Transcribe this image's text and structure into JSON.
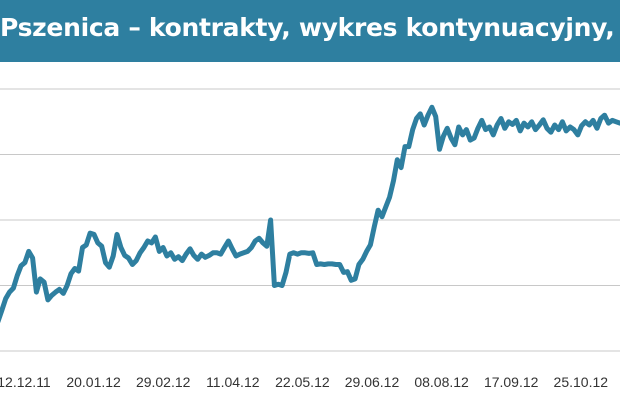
{
  "title": "Pszenica – kontrakty, wykres kontynuacyjny, Matif",
  "colors": {
    "banner": "#2e7fa0",
    "series": "#2e7fa0",
    "grid": "#c8c8c8",
    "text": "#333333"
  },
  "chart_data": {
    "type": "line",
    "title": "Pszenica – kontrakty, wykres kontynuacyjny, Matif",
    "xlabel": "",
    "ylabel": "",
    "x_tick_labels": [
      "12.12.11",
      "20.01.12",
      "29.02.12",
      "11.04.12",
      "22.05.12",
      "29.06.12",
      "08.08.12",
      "17.09.12",
      "25.10.12"
    ],
    "x_range": [
      0,
      324
    ],
    "y_range": [
      0,
      4
    ],
    "grid": true,
    "legend": "none",
    "series": [
      {
        "name": "",
        "points": [
          [
            0,
            0.45
          ],
          [
            2,
            0.62
          ],
          [
            4,
            0.8
          ],
          [
            6,
            0.9
          ],
          [
            8,
            0.96
          ],
          [
            10,
            1.15
          ],
          [
            12,
            1.3
          ],
          [
            14,
            1.35
          ],
          [
            16,
            1.52
          ],
          [
            18,
            1.42
          ],
          [
            20,
            0.9
          ],
          [
            22,
            1.1
          ],
          [
            24,
            1.05
          ],
          [
            26,
            0.78
          ],
          [
            28,
            0.85
          ],
          [
            30,
            0.9
          ],
          [
            32,
            0.94
          ],
          [
            34,
            0.88
          ],
          [
            36,
            1.0
          ],
          [
            38,
            1.18
          ],
          [
            40,
            1.26
          ],
          [
            42,
            1.22
          ],
          [
            44,
            1.58
          ],
          [
            46,
            1.62
          ],
          [
            48,
            1.8
          ],
          [
            50,
            1.78
          ],
          [
            52,
            1.65
          ],
          [
            54,
            1.6
          ],
          [
            56,
            1.35
          ],
          [
            58,
            1.28
          ],
          [
            60,
            1.45
          ],
          [
            62,
            1.78
          ],
          [
            64,
            1.58
          ],
          [
            66,
            1.46
          ],
          [
            68,
            1.42
          ],
          [
            70,
            1.32
          ],
          [
            72,
            1.38
          ],
          [
            74,
            1.5
          ],
          [
            76,
            1.58
          ],
          [
            78,
            1.68
          ],
          [
            80,
            1.65
          ],
          [
            82,
            1.74
          ],
          [
            84,
            1.52
          ],
          [
            86,
            1.58
          ],
          [
            88,
            1.45
          ],
          [
            90,
            1.5
          ],
          [
            92,
            1.4
          ],
          [
            94,
            1.44
          ],
          [
            96,
            1.38
          ],
          [
            98,
            1.48
          ],
          [
            100,
            1.56
          ],
          [
            102,
            1.46
          ],
          [
            104,
            1.4
          ],
          [
            106,
            1.48
          ],
          [
            108,
            1.43
          ],
          [
            110,
            1.46
          ],
          [
            112,
            1.5
          ],
          [
            114,
            1.5
          ],
          [
            116,
            1.48
          ],
          [
            118,
            1.58
          ],
          [
            120,
            1.68
          ],
          [
            122,
            1.56
          ],
          [
            124,
            1.45
          ],
          [
            126,
            1.48
          ],
          [
            128,
            1.5
          ],
          [
            130,
            1.52
          ],
          [
            132,
            1.58
          ],
          [
            134,
            1.68
          ],
          [
            136,
            1.72
          ],
          [
            138,
            1.65
          ],
          [
            140,
            1.6
          ],
          [
            142,
            2.0
          ],
          [
            144,
            1.0
          ],
          [
            146,
            1.02
          ],
          [
            148,
            1.0
          ],
          [
            150,
            1.2
          ],
          [
            152,
            1.48
          ],
          [
            154,
            1.5
          ],
          [
            156,
            1.48
          ],
          [
            158,
            1.5
          ],
          [
            160,
            1.5
          ],
          [
            162,
            1.49
          ],
          [
            164,
            1.5
          ],
          [
            166,
            1.32
          ],
          [
            168,
            1.33
          ],
          [
            170,
            1.32
          ],
          [
            172,
            1.33
          ],
          [
            174,
            1.33
          ],
          [
            176,
            1.32
          ],
          [
            178,
            1.32
          ],
          [
            180,
            1.2
          ],
          [
            182,
            1.21
          ],
          [
            184,
            1.08
          ],
          [
            186,
            1.1
          ],
          [
            188,
            1.32
          ],
          [
            190,
            1.4
          ],
          [
            192,
            1.52
          ],
          [
            194,
            1.62
          ],
          [
            196,
            1.9
          ],
          [
            198,
            2.15
          ],
          [
            200,
            2.05
          ],
          [
            202,
            2.2
          ],
          [
            204,
            2.35
          ],
          [
            206,
            2.6
          ],
          [
            208,
            2.92
          ],
          [
            210,
            2.8
          ],
          [
            212,
            3.12
          ],
          [
            214,
            3.12
          ],
          [
            216,
            3.38
          ],
          [
            218,
            3.55
          ],
          [
            220,
            3.62
          ],
          [
            222,
            3.45
          ],
          [
            224,
            3.6
          ],
          [
            226,
            3.72
          ],
          [
            228,
            3.58
          ],
          [
            230,
            3.08
          ],
          [
            232,
            3.28
          ],
          [
            234,
            3.4
          ],
          [
            236,
            3.25
          ],
          [
            238,
            3.15
          ],
          [
            240,
            3.42
          ],
          [
            242,
            3.3
          ],
          [
            244,
            3.38
          ],
          [
            246,
            3.22
          ],
          [
            248,
            3.25
          ],
          [
            250,
            3.4
          ],
          [
            252,
            3.52
          ],
          [
            254,
            3.38
          ],
          [
            256,
            3.42
          ],
          [
            258,
            3.3
          ],
          [
            260,
            3.45
          ],
          [
            262,
            3.55
          ],
          [
            264,
            3.4
          ],
          [
            266,
            3.5
          ],
          [
            268,
            3.46
          ],
          [
            270,
            3.52
          ],
          [
            272,
            3.36
          ],
          [
            274,
            3.48
          ],
          [
            276,
            3.42
          ],
          [
            278,
            3.5
          ],
          [
            280,
            3.38
          ],
          [
            282,
            3.45
          ],
          [
            284,
            3.53
          ],
          [
            286,
            3.4
          ],
          [
            288,
            3.34
          ],
          [
            290,
            3.45
          ],
          [
            292,
            3.38
          ],
          [
            294,
            3.5
          ],
          [
            296,
            3.36
          ],
          [
            298,
            3.42
          ],
          [
            300,
            3.38
          ],
          [
            302,
            3.3
          ],
          [
            304,
            3.44
          ],
          [
            306,
            3.5
          ],
          [
            308,
            3.45
          ],
          [
            310,
            3.52
          ],
          [
            312,
            3.4
          ],
          [
            314,
            3.55
          ],
          [
            316,
            3.6
          ],
          [
            318,
            3.48
          ],
          [
            320,
            3.52
          ],
          [
            322,
            3.5
          ],
          [
            324,
            3.48
          ]
        ]
      }
    ]
  }
}
